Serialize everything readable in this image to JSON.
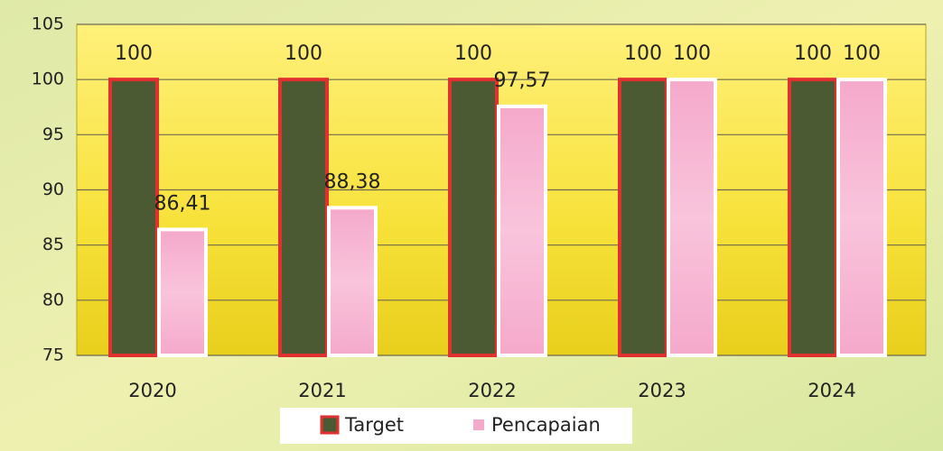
{
  "chart_data": {
    "type": "bar",
    "categories": [
      "2020",
      "2021",
      "2022",
      "2023",
      "2024"
    ],
    "series": [
      {
        "name": "Target",
        "color": "#4b5a33",
        "values": [
          100,
          100,
          100,
          100,
          100
        ]
      },
      {
        "name": "Pencapaian",
        "color": "#f5a9cb",
        "values": [
          86.41,
          88.38,
          97.57,
          100,
          100
        ],
        "value_labels": [
          "86,41",
          "88,38",
          "97,57",
          "100",
          "100"
        ]
      }
    ],
    "ylim": [
      75,
      105
    ],
    "yticks": [
      75,
      80,
      85,
      90,
      95,
      100,
      105
    ],
    "grid": true,
    "legend": "bottom"
  }
}
